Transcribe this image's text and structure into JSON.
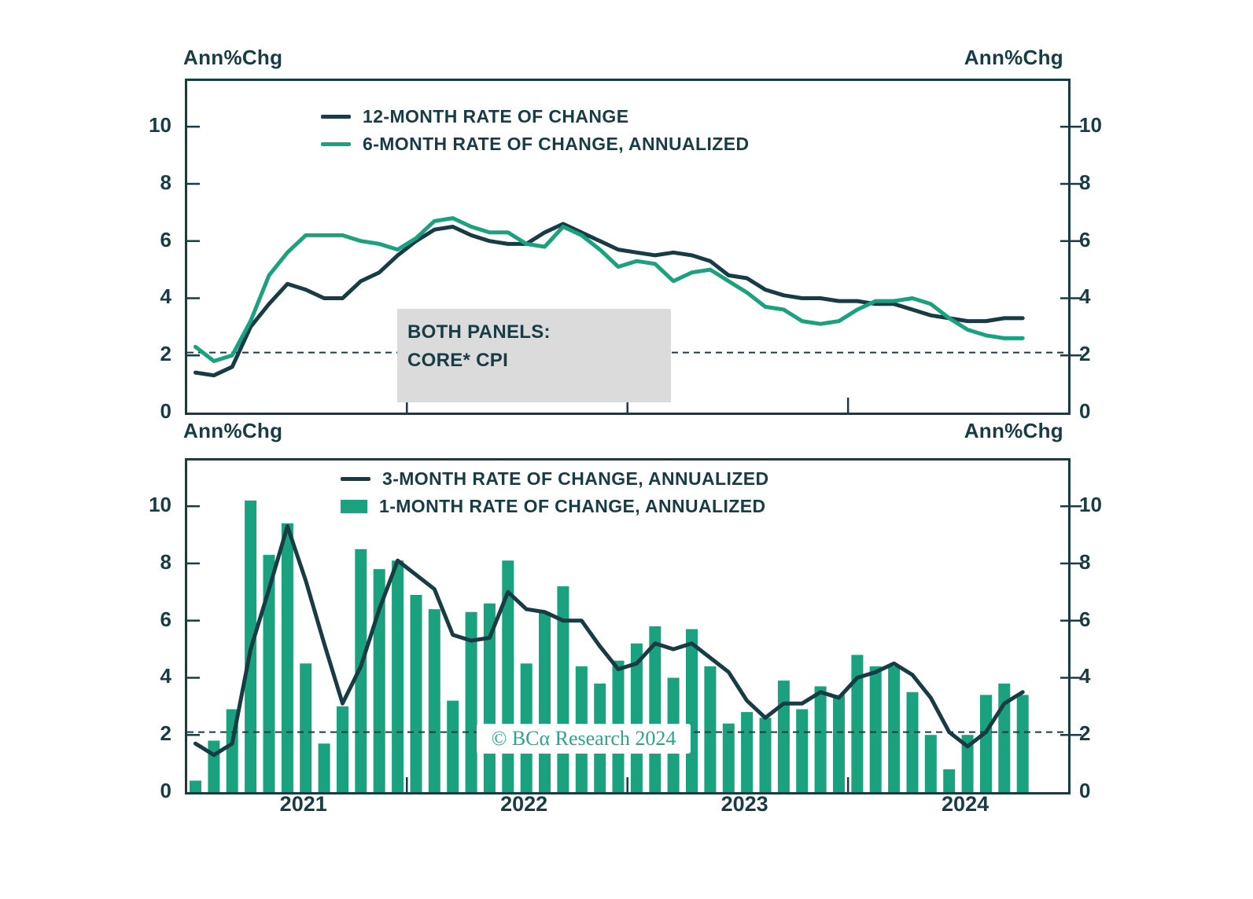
{
  "colors": {
    "dark": "#183c43",
    "green": "#19a27d",
    "watermark_green": "#2ba68a",
    "annotation_bg": "#dbdbdb",
    "background": "#ffffff"
  },
  "labels": {
    "axis_unit": "Ann%Chg"
  },
  "annotation": {
    "line1": "BOTH PANELS:",
    "line2": "CORE* CPI"
  },
  "watermark": "© BCα Research 2024",
  "chart_data": [
    {
      "type": "line",
      "panel": "top",
      "x": [
        "2021-01",
        "2021-02",
        "2021-03",
        "2021-04",
        "2021-05",
        "2021-06",
        "2021-07",
        "2021-08",
        "2021-09",
        "2021-10",
        "2021-11",
        "2021-12",
        "2022-01",
        "2022-02",
        "2022-03",
        "2022-04",
        "2022-05",
        "2022-06",
        "2022-07",
        "2022-08",
        "2022-09",
        "2022-10",
        "2022-11",
        "2022-12",
        "2023-01",
        "2023-02",
        "2023-03",
        "2023-04",
        "2023-05",
        "2023-06",
        "2023-07",
        "2023-08",
        "2023-09",
        "2023-10",
        "2023-11",
        "2023-12",
        "2024-01",
        "2024-02",
        "2024-03",
        "2024-04",
        "2024-05",
        "2024-06",
        "2024-07",
        "2024-08",
        "2024-09",
        "2024-10"
      ],
      "ylabel": "Ann%Chg",
      "ylim": [
        0,
        11.6
      ],
      "yticks": [
        0,
        2,
        4,
        6,
        8,
        10
      ],
      "reference_line": 2.1,
      "grid": false,
      "legend_position": "top-center",
      "year_tick_indices": [
        12,
        24,
        36
      ],
      "series": [
        {
          "name": "12-MONTH RATE OF CHANGE",
          "type": "line",
          "color": "dark",
          "values": [
            1.4,
            1.3,
            1.6,
            3.0,
            3.8,
            4.5,
            4.3,
            4.0,
            4.0,
            4.6,
            4.9,
            5.5,
            6.0,
            6.4,
            6.5,
            6.2,
            6.0,
            5.9,
            5.9,
            6.3,
            6.6,
            6.3,
            6.0,
            5.7,
            5.6,
            5.5,
            5.6,
            5.5,
            5.3,
            4.8,
            4.7,
            4.3,
            4.1,
            4.0,
            4.0,
            3.9,
            3.9,
            3.8,
            3.8,
            3.6,
            3.4,
            3.3,
            3.2,
            3.2,
            3.3,
            3.3
          ]
        },
        {
          "name": "6-MONTH RATE OF CHANGE, ANNUALIZED",
          "type": "line",
          "color": "green",
          "values": [
            2.3,
            1.8,
            2.0,
            3.2,
            4.8,
            5.6,
            6.2,
            6.2,
            6.2,
            6.0,
            5.9,
            5.7,
            6.1,
            6.7,
            6.8,
            6.5,
            6.3,
            6.3,
            5.9,
            5.8,
            6.5,
            6.2,
            5.7,
            5.1,
            5.3,
            5.2,
            4.6,
            4.9,
            5.0,
            4.6,
            4.2,
            3.7,
            3.6,
            3.2,
            3.1,
            3.2,
            3.6,
            3.9,
            3.9,
            4.0,
            3.8,
            3.3,
            2.9,
            2.7,
            2.6,
            2.6
          ]
        }
      ]
    },
    {
      "type": "bar",
      "panel": "bottom",
      "x": [
        "2021-01",
        "2021-02",
        "2021-03",
        "2021-04",
        "2021-05",
        "2021-06",
        "2021-07",
        "2021-08",
        "2021-09",
        "2021-10",
        "2021-11",
        "2021-12",
        "2022-01",
        "2022-02",
        "2022-03",
        "2022-04",
        "2022-05",
        "2022-06",
        "2022-07",
        "2022-08",
        "2022-09",
        "2022-10",
        "2022-11",
        "2022-12",
        "2023-01",
        "2023-02",
        "2023-03",
        "2023-04",
        "2023-05",
        "2023-06",
        "2023-07",
        "2023-08",
        "2023-09",
        "2023-10",
        "2023-11",
        "2023-12",
        "2024-01",
        "2024-02",
        "2024-03",
        "2024-04",
        "2024-05",
        "2024-06",
        "2024-07",
        "2024-08",
        "2024-09",
        "2024-10"
      ],
      "ylabel": "Ann%Chg",
      "ylim": [
        0,
        11.6
      ],
      "yticks": [
        0,
        2,
        4,
        6,
        8,
        10
      ],
      "reference_line": 2.1,
      "grid": false,
      "legend_position": "top-center",
      "year_tick_indices": [
        12,
        24,
        36
      ],
      "year_labels": [
        {
          "index": 6,
          "label": "2021"
        },
        {
          "index": 18,
          "label": "2022"
        },
        {
          "index": 30,
          "label": "2023"
        },
        {
          "index": 42,
          "label": "2024"
        }
      ],
      "series": [
        {
          "name": "3-MONTH RATE OF CHANGE, ANNUALIZED",
          "type": "line",
          "color": "dark",
          "values": [
            1.7,
            1.3,
            1.7,
            5.0,
            7.1,
            9.3,
            7.4,
            5.2,
            3.1,
            4.4,
            6.4,
            8.1,
            7.6,
            7.1,
            5.5,
            5.3,
            5.4,
            7.0,
            6.4,
            6.3,
            6.0,
            6.0,
            5.1,
            4.3,
            4.5,
            5.2,
            5.0,
            5.2,
            4.7,
            4.2,
            3.2,
            2.6,
            3.1,
            3.1,
            3.5,
            3.3,
            4.0,
            4.2,
            4.5,
            4.1,
            3.3,
            2.1,
            1.6,
            2.1,
            3.1,
            3.5
          ]
        },
        {
          "name": "1-MONTH RATE OF CHANGE, ANNUALIZED",
          "type": "bar",
          "color": "green",
          "values": [
            0.4,
            1.8,
            2.9,
            10.2,
            8.3,
            9.4,
            4.5,
            1.7,
            3.0,
            8.5,
            7.8,
            8.1,
            6.9,
            6.4,
            3.2,
            6.3,
            6.6,
            8.1,
            4.5,
            6.3,
            7.2,
            4.4,
            3.8,
            4.6,
            5.2,
            5.8,
            4.0,
            5.7,
            4.4,
            2.4,
            2.8,
            2.6,
            3.9,
            2.9,
            3.7,
            3.4,
            4.8,
            4.4,
            4.4,
            3.5,
            2.0,
            0.8,
            2.0,
            3.4,
            3.8,
            3.4
          ]
        }
      ]
    }
  ]
}
